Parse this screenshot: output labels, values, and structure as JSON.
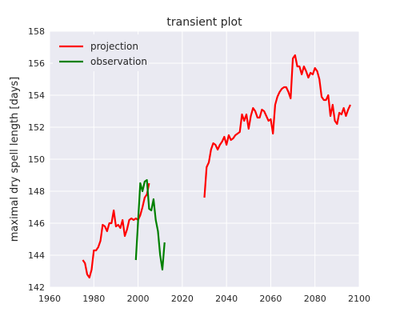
{
  "chart_data": {
    "type": "line",
    "title": "transient plot",
    "xlabel": "",
    "ylabel": "maximal dry spell length [days]",
    "xlim": [
      1960,
      2100
    ],
    "ylim": [
      142,
      158
    ],
    "xticks": [
      1960,
      1980,
      2000,
      2020,
      2040,
      2060,
      2080,
      2100
    ],
    "yticks": [
      142,
      144,
      146,
      148,
      150,
      152,
      154,
      156,
      158
    ],
    "grid": true,
    "legend_position": "top-left",
    "background": "#eaeaf2",
    "series": [
      {
        "name": "projection",
        "color": "#ff0000",
        "segments": [
          {
            "x": [
              1975,
              1976,
              1977,
              1978,
              1979,
              1980,
              1981,
              1982,
              1983,
              1984,
              1985,
              1986,
              1987,
              1988,
              1989,
              1990,
              1991,
              1992,
              1993,
              1994,
              1995,
              1996,
              1997,
              1998,
              1999,
              2000,
              2001,
              2002,
              2003,
              2004,
              2005
            ],
            "y": [
              143.7,
              143.5,
              142.8,
              142.6,
              143.1,
              144.3,
              144.3,
              144.5,
              144.9,
              145.9,
              145.8,
              145.5,
              146.0,
              146.0,
              146.8,
              145.8,
              145.9,
              145.7,
              146.2,
              145.2,
              145.6,
              146.2,
              146.3,
              146.2,
              146.3,
              146.2,
              146.5,
              147.0,
              147.6,
              147.8,
              148.5
            ]
          },
          {
            "x": [
              2030,
              2031,
              2032,
              2033,
              2034,
              2035,
              2036,
              2037,
              2038,
              2039,
              2040,
              2041,
              2042,
              2043,
              2044,
              2045,
              2046,
              2047,
              2048,
              2049,
              2050,
              2051,
              2052,
              2053,
              2054,
              2055,
              2056,
              2057,
              2058,
              2059,
              2060,
              2061,
              2062,
              2063,
              2064,
              2065,
              2066,
              2067,
              2068,
              2069,
              2070,
              2071,
              2072,
              2073,
              2074,
              2075,
              2076,
              2077,
              2078,
              2079,
              2080,
              2081,
              2082,
              2083,
              2084,
              2085,
              2086,
              2087,
              2088,
              2089,
              2090,
              2091,
              2092,
              2093,
              2094,
              2095,
              2096
            ],
            "y": [
              147.6,
              149.5,
              149.8,
              150.6,
              151.0,
              150.9,
              150.6,
              150.9,
              151.1,
              151.4,
              150.9,
              151.5,
              151.2,
              151.3,
              151.5,
              151.6,
              151.7,
              152.8,
              152.4,
              152.8,
              151.9,
              152.7,
              153.2,
              153.0,
              152.6,
              152.6,
              153.1,
              153.0,
              152.7,
              152.4,
              152.5,
              151.6,
              153.4,
              153.9,
              154.2,
              154.4,
              154.5,
              154.5,
              154.2,
              153.8,
              156.3,
              156.5,
              155.8,
              155.8,
              155.3,
              155.8,
              155.5,
              155.1,
              155.4,
              155.3,
              155.7,
              155.5,
              155.0,
              153.9,
              153.7,
              153.7,
              154.0,
              152.7,
              153.4,
              152.4,
              152.2,
              152.9,
              152.8,
              153.2,
              152.7,
              153.1,
              153.4
            ]
          }
        ]
      },
      {
        "name": "observation",
        "color": "#008000",
        "segments": [
          {
            "x": [
              1999,
              2000,
              2001,
              2002,
              2003,
              2004,
              2005,
              2006,
              2007,
              2008,
              2009,
              2010,
              2011,
              2012
            ],
            "y": [
              143.7,
              146.1,
              148.5,
              148.0,
              148.6,
              148.7,
              146.9,
              146.8,
              147.5,
              146.2,
              145.5,
              144.0,
              143.1,
              144.8
            ]
          }
        ]
      }
    ]
  }
}
